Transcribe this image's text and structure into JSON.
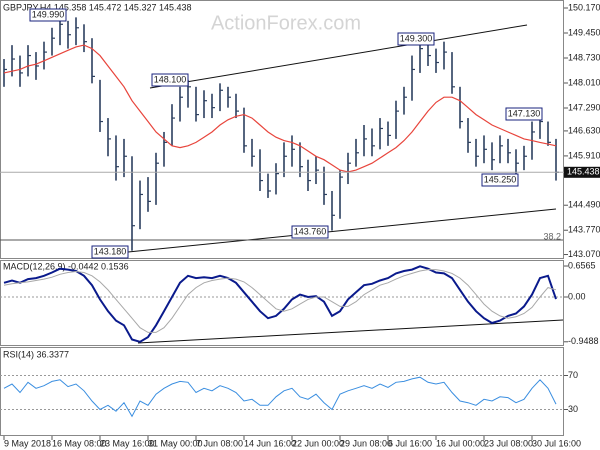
{
  "watermark": "ActionForex.com",
  "chart_data": [
    {
      "type": "ohlc",
      "title": "GBPJPY,H4 145.358 145.472 145.327 145.438",
      "color": "#2c3f5f",
      "ma_color": "#e8453c",
      "xlim": [
        -0.5,
        70
      ],
      "ylim": [
        142.97,
        150.4
      ],
      "yticks": [
        {
          "value": 150.17,
          "label": "150.170"
        },
        {
          "value": 149.45,
          "label": "149.450"
        },
        {
          "value": 148.73,
          "label": "148.730"
        },
        {
          "value": 148.01,
          "label": "148.010"
        },
        {
          "value": 147.29,
          "label": "147.290"
        },
        {
          "value": 146.63,
          "label": "146.630"
        },
        {
          "value": 145.91,
          "label": "145.910"
        },
        {
          "value": 144.49,
          "label": "144.490"
        },
        {
          "value": 143.77,
          "label": "143.770"
        },
        {
          "value": 143.07,
          "label": "143.070"
        }
      ],
      "high": [
        148.7,
        149.1,
        148.8,
        149.1,
        148.9,
        149.2,
        149.6,
        149.99,
        149.8,
        149.9,
        149.7,
        149.3,
        148.1,
        147.0,
        146.5,
        146.4,
        145.9,
        145.2,
        145.3,
        146.0,
        146.6,
        147.4,
        147.9,
        148.1,
        147.9,
        147.8,
        147.7,
        148.0,
        147.9,
        147.7,
        147.3,
        146.4,
        146.1,
        145.4,
        145.7,
        146.3,
        146.5,
        146.3,
        145.8,
        145.9,
        145.6,
        144.9,
        145.5,
        146.0,
        146.4,
        146.8,
        146.7,
        147.0,
        146.9,
        147.5,
        147.9,
        148.8,
        149.3,
        149.2,
        149.0,
        149.2,
        148.9,
        147.9,
        147.0,
        146.4,
        146.5,
        146.3,
        146.5,
        146.4,
        146.1,
        146.2,
        146.9,
        147.13,
        146.9,
        146.4
      ],
      "low": [
        147.9,
        148.2,
        147.9,
        148.2,
        148.1,
        148.4,
        148.8,
        149.1,
        149.0,
        149.1,
        148.9,
        148.0,
        146.6,
        145.9,
        145.2,
        145.3,
        143.18,
        143.8,
        144.3,
        144.5,
        145.6,
        146.2,
        146.9,
        147.3,
        146.9,
        147.0,
        147.0,
        147.2,
        147.3,
        147.0,
        146.0,
        145.6,
        144.9,
        144.7,
        144.8,
        145.3,
        145.6,
        145.3,
        144.9,
        145.1,
        144.5,
        143.76,
        144.1,
        145.1,
        145.6,
        145.9,
        145.9,
        146.1,
        146.2,
        146.4,
        147.1,
        147.5,
        148.3,
        148.5,
        148.3,
        148.4,
        147.7,
        146.7,
        146.0,
        145.6,
        145.7,
        145.5,
        145.7,
        145.7,
        145.25,
        145.5,
        145.8,
        146.4,
        146.2,
        145.2
      ],
      "close": [
        148.4,
        148.7,
        148.3,
        148.8,
        148.5,
        148.9,
        149.3,
        149.7,
        149.4,
        149.6,
        149.2,
        148.2,
        146.9,
        146.4,
        145.6,
        145.9,
        143.9,
        144.8,
        144.6,
        145.7,
        146.3,
        147.0,
        147.6,
        147.9,
        147.1,
        147.5,
        147.3,
        147.8,
        147.6,
        147.2,
        146.2,
        145.9,
        145.2,
        144.9,
        145.4,
        145.9,
        146.1,
        145.6,
        145.2,
        145.5,
        144.8,
        144.2,
        145.3,
        145.7,
        146.0,
        146.4,
        146.2,
        146.7,
        146.5,
        147.2,
        147.6,
        148.4,
        149.0,
        148.8,
        148.6,
        148.9,
        147.9,
        146.9,
        146.3,
        145.9,
        146.1,
        145.8,
        146.2,
        146.0,
        145.7,
        145.9,
        146.6,
        146.9,
        146.3,
        145.438
      ],
      "ma": [
        148.3,
        148.35,
        148.4,
        148.5,
        148.55,
        148.65,
        148.75,
        148.85,
        148.95,
        149.05,
        149.1,
        149.0,
        148.8,
        148.5,
        148.2,
        147.9,
        147.5,
        147.2,
        146.9,
        146.6,
        146.4,
        146.2,
        146.15,
        146.2,
        146.3,
        146.45,
        146.6,
        146.8,
        146.95,
        147.05,
        147.1,
        147.0,
        146.8,
        146.6,
        146.45,
        146.35,
        146.3,
        146.2,
        146.05,
        145.9,
        145.8,
        145.65,
        145.5,
        145.45,
        145.5,
        145.6,
        145.7,
        145.85,
        146.0,
        146.15,
        146.35,
        146.6,
        146.9,
        147.2,
        147.45,
        147.6,
        147.6,
        147.5,
        147.3,
        147.1,
        146.95,
        146.8,
        146.7,
        146.6,
        146.5,
        146.4,
        146.35,
        146.3,
        146.25,
        146.2
      ],
      "annotations": [
        "149.990",
        "148.100",
        "143.180",
        "143.760",
        "149.300",
        "147.130",
        "145.250",
        "38.2"
      ]
    },
    {
      "type": "line",
      "title": "MACD(12,26,9) -0.0442 0.1536",
      "xlim": [
        -0.5,
        70
      ],
      "ylim": [
        -1.017,
        0.784
      ],
      "yticks": [
        0.6565,
        {
          "value": 0,
          "label": "0.00"
        },
        -0.9488
      ],
      "levels": [
        {
          "value": 0,
          "label": "0.00"
        }
      ],
      "series": [
        {
          "name": "MACD",
          "color": "#0a1a8c",
          "width": 2,
          "values": [
            0.3,
            0.35,
            0.3,
            0.38,
            0.4,
            0.45,
            0.52,
            0.6,
            0.58,
            0.55,
            0.45,
            0.25,
            -0.05,
            -0.3,
            -0.5,
            -0.6,
            -0.9,
            -0.95,
            -0.85,
            -0.6,
            -0.3,
            0.0,
            0.3,
            0.45,
            0.4,
            0.42,
            0.4,
            0.45,
            0.4,
            0.3,
            0.1,
            -0.1,
            -0.3,
            -0.45,
            -0.4,
            -0.25,
            -0.05,
            0.05,
            0.0,
            0.02,
            -0.1,
            -0.4,
            -0.3,
            -0.05,
            0.1,
            0.25,
            0.28,
            0.35,
            0.4,
            0.5,
            0.55,
            0.58,
            0.65,
            0.6,
            0.52,
            0.5,
            0.4,
            0.15,
            -0.1,
            -0.3,
            -0.45,
            -0.55,
            -0.5,
            -0.4,
            -0.35,
            -0.2,
            0.05,
            0.4,
            0.45,
            -0.0442
          ]
        },
        {
          "name": "Signal",
          "color": "#a8a8a8",
          "width": 1,
          "values": [
            0.25,
            0.28,
            0.3,
            0.32,
            0.35,
            0.38,
            0.42,
            0.48,
            0.52,
            0.54,
            0.52,
            0.45,
            0.32,
            0.15,
            -0.05,
            -0.25,
            -0.45,
            -0.65,
            -0.75,
            -0.75,
            -0.65,
            -0.45,
            -0.2,
            0.05,
            0.2,
            0.3,
            0.35,
            0.38,
            0.4,
            0.38,
            0.32,
            0.2,
            0.05,
            -0.1,
            -0.25,
            -0.3,
            -0.25,
            -0.15,
            -0.05,
            0.0,
            0.0,
            -0.1,
            -0.2,
            -0.2,
            -0.1,
            0.05,
            0.15,
            0.25,
            0.3,
            0.38,
            0.45,
            0.5,
            0.55,
            0.58,
            0.58,
            0.55,
            0.5,
            0.4,
            0.25,
            0.05,
            -0.15,
            -0.3,
            -0.4,
            -0.45,
            -0.42,
            -0.35,
            -0.22,
            0.0,
            0.2,
            0.1536
          ]
        }
      ]
    },
    {
      "type": "line",
      "title": "RSI(14) 36.3377",
      "xlim": [
        -0.5,
        70
      ],
      "ylim": [
        0,
        100
      ],
      "yticks": [
        70,
        30
      ],
      "levels": [
        70,
        30
      ],
      "xticks": [
        {
          "value": 0,
          "label": "9 May 2018"
        },
        {
          "value": 6,
          "label": "16 May 08:00"
        },
        {
          "value": 12,
          "label": "23 May 16:00"
        },
        {
          "value": 18,
          "label": "31 May 00:00"
        },
        {
          "value": 24,
          "label": "7 Jun 08:00"
        },
        {
          "value": 30,
          "label": "14 Jun 16:00"
        },
        {
          "value": 36,
          "label": "22 Jun 00:00"
        },
        {
          "value": 42,
          "label": "29 Jun 08:00"
        },
        {
          "value": 48,
          "label": "6 Jul 16:00"
        },
        {
          "value": 54,
          "label": "16 Jul 00:00"
        },
        {
          "value": 60,
          "label": "23 Jul 08:00"
        },
        {
          "value": 66,
          "label": "30 Jul 16:00"
        }
      ],
      "series": [
        {
          "name": "RSI",
          "color": "#3a8ee0",
          "width": 1,
          "values": [
            55,
            60,
            50,
            62,
            55,
            58,
            63,
            65,
            57,
            60,
            52,
            40,
            30,
            35,
            28,
            38,
            22,
            40,
            35,
            48,
            55,
            60,
            63,
            62,
            50,
            55,
            52,
            58,
            55,
            50,
            40,
            42,
            35,
            35,
            45,
            52,
            55,
            45,
            42,
            48,
            38,
            30,
            48,
            52,
            55,
            58,
            55,
            60,
            56,
            62,
            63,
            66,
            68,
            62,
            60,
            62,
            50,
            40,
            38,
            35,
            42,
            40,
            45,
            44,
            38,
            42,
            55,
            65,
            55,
            36.3377
          ]
        }
      ]
    }
  ]
}
